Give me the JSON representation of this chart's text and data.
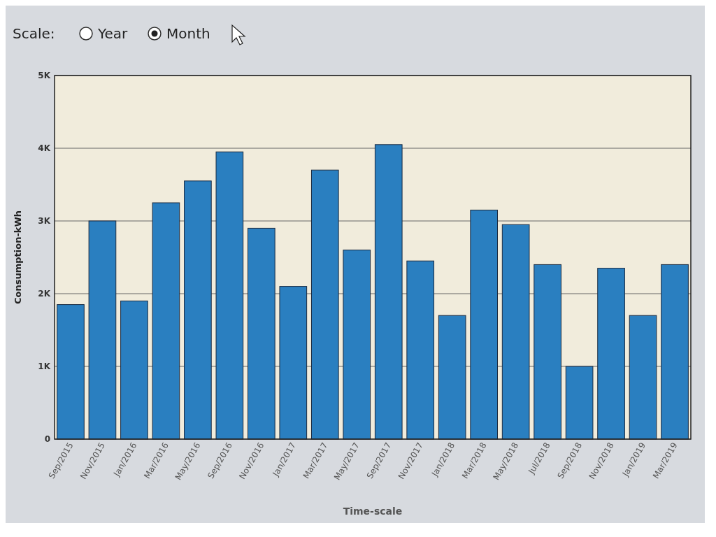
{
  "chart_data": {
    "type": "bar",
    "xlabel": "Time-scale",
    "ylabel": "Consumption-kWh",
    "categories": [
      "Sep/2015",
      "Nov/2015",
      "Jan/2016",
      "Mar/2016",
      "May/2016",
      "Sep/2016",
      "Nov/2016",
      "Jan/2017",
      "Mar/2017",
      "May/2017",
      "Sep/2017",
      "Nov/2017",
      "Jan/2018",
      "Mar/2018",
      "May/2018",
      "Jul/2018",
      "Sep/2018",
      "Nov/2018",
      "Jan/2019",
      "Mar/2019"
    ],
    "values": [
      1850,
      3000,
      1900,
      3250,
      3550,
      3950,
      2900,
      2100,
      3700,
      2600,
      4050,
      2450,
      1700,
      3150,
      2950,
      2400,
      1000,
      2350,
      1700,
      2400
    ],
    "color": "#2a7fc0",
    "ylim": [
      0,
      5000
    ],
    "yticks": [
      {
        "value": 0,
        "label": "0"
      },
      {
        "value": 1000,
        "label": "1K"
      },
      {
        "value": 2000,
        "label": "2K"
      },
      {
        "value": 3000,
        "label": "3K"
      },
      {
        "value": 4000,
        "label": "4K"
      },
      {
        "value": 5000,
        "label": "5K"
      }
    ],
    "grid": "y",
    "annotations": [
      "Scale:",
      "Year",
      "Month"
    ]
  }
}
